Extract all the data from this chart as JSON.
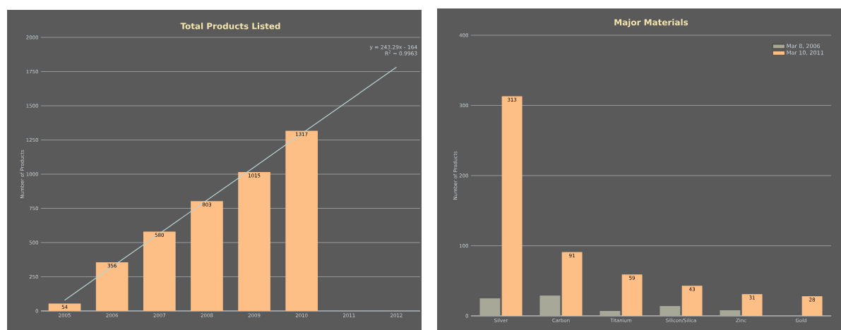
{
  "chart_data": [
    {
      "type": "bar",
      "title": "Total Products Listed",
      "ylabel": "Number of Products",
      "categories": [
        "2005",
        "2006",
        "2007",
        "2008",
        "2009",
        "2010",
        "2011",
        "2012"
      ],
      "series": [
        {
          "color": "#fdbf86",
          "values": [
            54,
            356,
            580,
            803,
            1015,
            1317,
            null,
            null
          ],
          "value_labels": [
            "54",
            "356",
            "580",
            "803",
            "1015",
            "1317",
            null,
            null
          ]
        },
        {
          "type": "line",
          "color": "#b8d4d4",
          "values": [
            79,
            323,
            566,
            809,
            1052,
            1296,
            1539,
            1782
          ]
        }
      ],
      "annotations": [
        "y = 243.29x - 164",
        "R$^{2}$ = 0.9963"
      ],
      "ylim": [
        0,
        2000
      ],
      "yticks": [
        0,
        250,
        500,
        750,
        1000,
        1250,
        1500,
        1750,
        2000
      ],
      "grid": "y"
    },
    {
      "type": "bar",
      "title": "Major Materials",
      "ylabel": "Number of Products",
      "categories": [
        "Silver",
        "Carbon",
        "Titanium",
        "Silicon/Silica",
        "Zinc",
        "Gold"
      ],
      "series": [
        {
          "name": "Mar 8, 2006",
          "color": "#a8a898",
          "values": [
            25,
            29,
            7,
            14,
            8,
            0
          ]
        },
        {
          "name": "Mar 10, 2011",
          "color": "#fdbf86",
          "values": [
            313,
            91,
            59,
            43,
            31,
            28
          ],
          "value_labels": [
            "313",
            "91",
            "59",
            "43",
            "31",
            "28"
          ]
        }
      ],
      "ylim": [
        0,
        400
      ],
      "yticks": [
        0,
        100,
        200,
        300,
        400
      ],
      "grid": "y",
      "legend": "top right"
    }
  ]
}
